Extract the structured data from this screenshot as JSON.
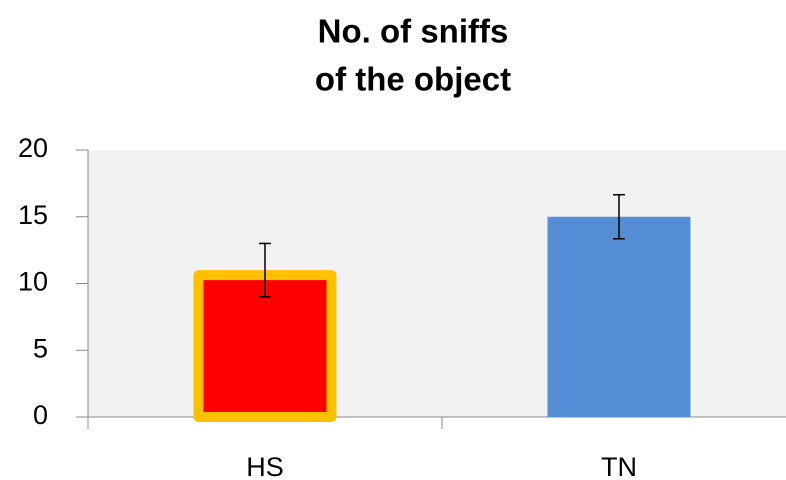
{
  "chart_data": {
    "type": "bar",
    "title": [
      "No. of sniffs",
      "of the object"
    ],
    "categories": [
      "HS",
      "TN"
    ],
    "values": [
      11,
      15
    ],
    "errors": [
      2,
      1.65
    ],
    "colors": [
      "#ff0000",
      "#558ed5"
    ],
    "edge_colors": [
      "#ffc000",
      null
    ],
    "ylim": [
      0,
      20
    ],
    "yticks": [
      0,
      5,
      10,
      15,
      20
    ],
    "grid": false
  }
}
